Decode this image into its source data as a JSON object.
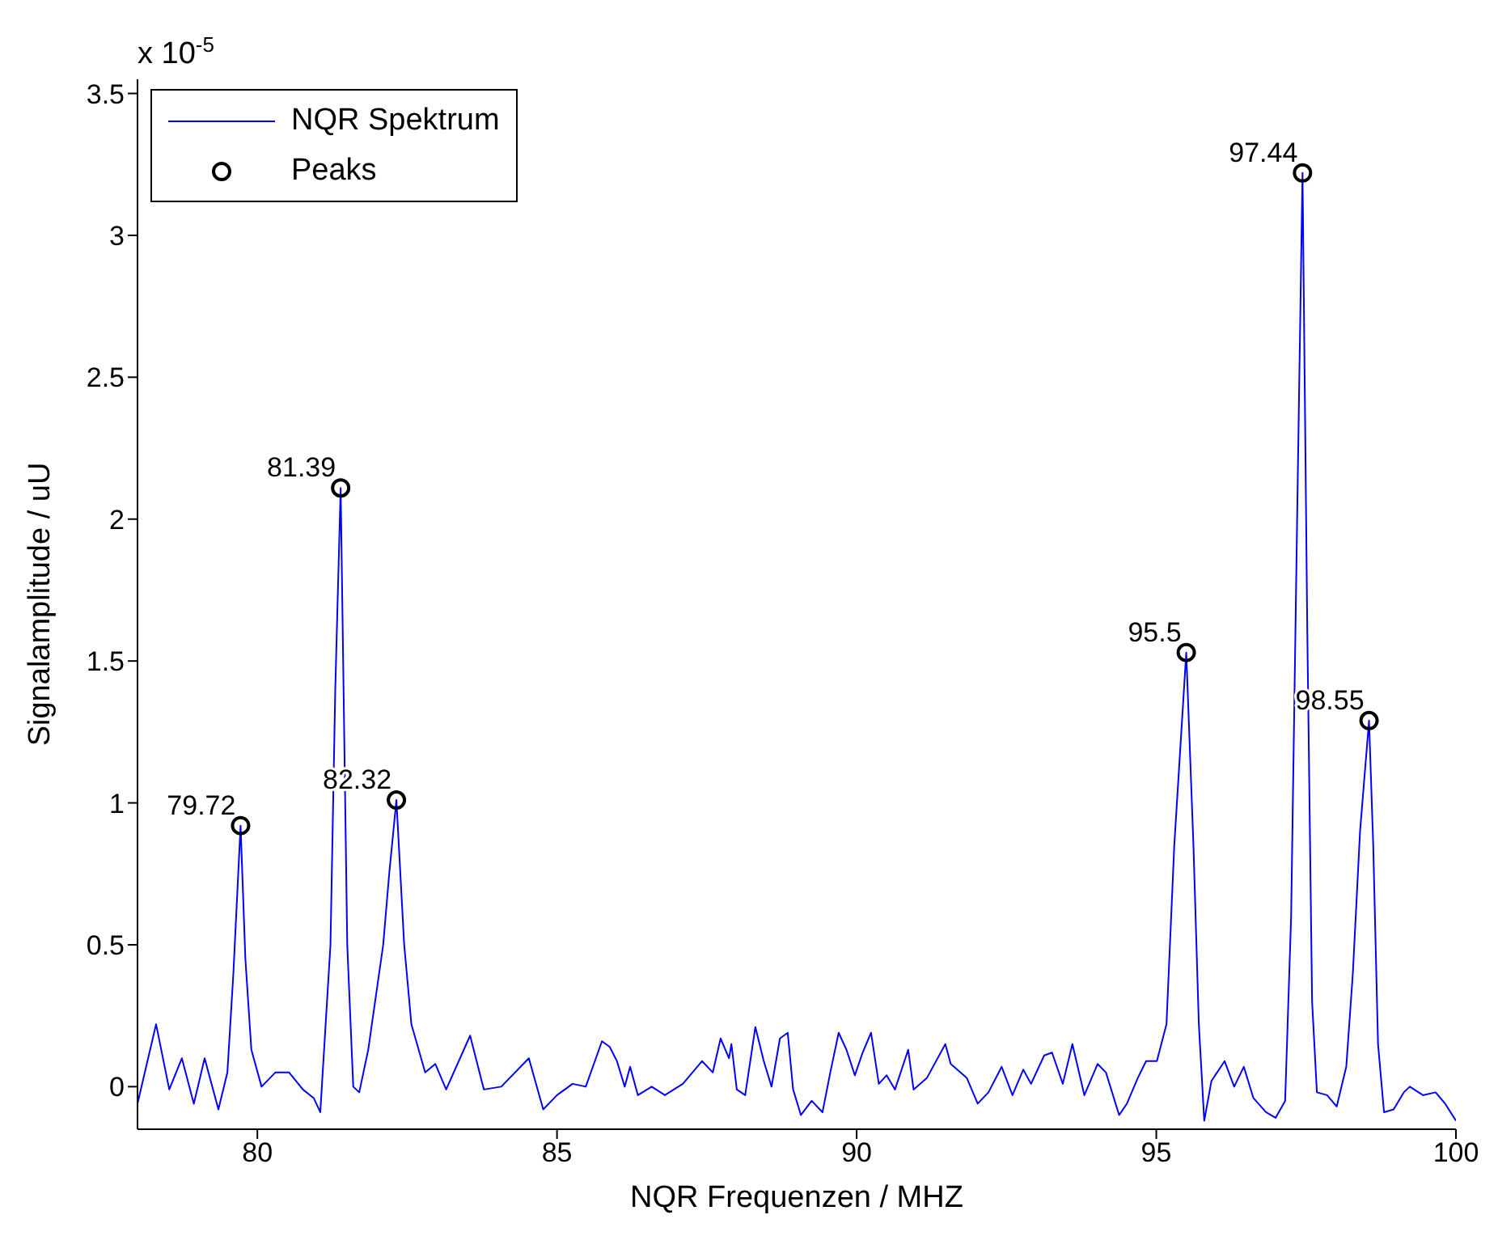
{
  "chart_data": {
    "type": "line",
    "xlabel": "NQR Frequenzen / MHZ",
    "ylabel": "Signalamplitude / uU",
    "xlim": [
      78,
      100
    ],
    "xticks": [
      80,
      85,
      90,
      95,
      100
    ],
    "ylim": [
      -0.15,
      3.55
    ],
    "yticks": [
      0,
      0.5,
      1,
      1.5,
      2,
      2.5,
      3,
      3.5
    ],
    "grid": false,
    "legend": "top left",
    "series": [
      {
        "name": "NQR Spektrum",
        "color": "#0000ff",
        "marker": "none",
        "line_style": "solid",
        "x": [
          78.0,
          78.31,
          78.53,
          78.74,
          78.94,
          79.12,
          79.35,
          79.5,
          79.6,
          79.72,
          79.8,
          79.9,
          80.07,
          80.3,
          80.53,
          80.76,
          80.94,
          81.05,
          81.22,
          81.3,
          81.39,
          81.5,
          81.6,
          81.7,
          81.85,
          82.1,
          82.2,
          82.32,
          82.45,
          82.57,
          82.8,
          82.97,
          83.15,
          83.55,
          83.78,
          84.07,
          84.53,
          84.77,
          85.0,
          85.26,
          85.48,
          85.75,
          85.88,
          86.0,
          86.13,
          86.22,
          86.35,
          86.58,
          86.8,
          87.1,
          87.42,
          87.6,
          87.73,
          87.87,
          87.91,
          88.0,
          88.14,
          88.31,
          88.45,
          88.58,
          88.72,
          88.85,
          88.94,
          89.07,
          89.25,
          89.43,
          89.56,
          89.7,
          89.83,
          89.97,
          90.1,
          90.24,
          90.37,
          90.5,
          90.64,
          90.86,
          90.95,
          91.17,
          91.48,
          91.57,
          91.84,
          92.02,
          92.2,
          92.42,
          92.6,
          92.78,
          92.91,
          93.13,
          93.26,
          93.44,
          93.6,
          93.8,
          94.02,
          94.16,
          94.38,
          94.51,
          94.69,
          94.83,
          95.01,
          95.17,
          95.3,
          95.5,
          95.62,
          95.71,
          95.8,
          95.92,
          96.14,
          96.3,
          96.46,
          96.62,
          96.83,
          96.99,
          97.15,
          97.25,
          97.35,
          97.44,
          97.52,
          97.6,
          97.68,
          97.85,
          98.01,
          98.17,
          98.28,
          98.4,
          98.55,
          98.62,
          98.7,
          98.8,
          98.96,
          99.13,
          99.23,
          99.45,
          99.66,
          99.82,
          100.0
        ],
        "values": [
          -0.06,
          0.22,
          -0.01,
          0.1,
          -0.06,
          0.1,
          -0.08,
          0.05,
          0.4,
          0.92,
          0.45,
          0.13,
          0.0,
          0.05,
          0.05,
          -0.01,
          -0.04,
          -0.09,
          0.5,
          1.4,
          2.11,
          0.5,
          0.0,
          -0.02,
          0.13,
          0.5,
          0.75,
          1.01,
          0.5,
          0.22,
          0.05,
          0.08,
          -0.01,
          0.18,
          -0.01,
          0.0,
          0.1,
          -0.08,
          -0.03,
          0.01,
          0.0,
          0.16,
          0.14,
          0.09,
          0.0,
          0.07,
          -0.03,
          0.0,
          -0.03,
          0.01,
          0.09,
          0.05,
          0.17,
          0.1,
          0.15,
          -0.01,
          -0.03,
          0.21,
          0.09,
          0.0,
          0.17,
          0.19,
          -0.01,
          -0.1,
          -0.05,
          -0.09,
          0.05,
          0.19,
          0.13,
          0.04,
          0.12,
          0.19,
          0.01,
          0.04,
          -0.01,
          0.13,
          -0.01,
          0.03,
          0.15,
          0.08,
          0.03,
          -0.06,
          -0.02,
          0.07,
          -0.03,
          0.06,
          0.01,
          0.11,
          0.12,
          0.01,
          0.15,
          -0.03,
          0.08,
          0.05,
          -0.1,
          -0.06,
          0.03,
          0.09,
          0.09,
          0.22,
          0.85,
          1.53,
          0.85,
          0.22,
          -0.12,
          0.02,
          0.09,
          0.0,
          0.07,
          -0.04,
          -0.09,
          -0.11,
          -0.05,
          0.6,
          2.0,
          3.22,
          1.6,
          0.3,
          -0.02,
          -0.03,
          -0.07,
          0.07,
          0.4,
          0.9,
          1.29,
          0.85,
          0.15,
          -0.09,
          -0.08,
          -0.02,
          0.0,
          -0.03,
          -0.02,
          -0.06,
          -0.12
        ]
      },
      {
        "name": "Peaks",
        "type": "scatter",
        "color": "#000000",
        "marker": "circle",
        "x": [
          79.72,
          81.39,
          82.32,
          95.5,
          97.44,
          98.55
        ],
        "values": [
          0.92,
          2.11,
          1.01,
          1.53,
          3.22,
          1.29
        ]
      }
    ],
    "annotations": [
      "x 10$^{-5}$",
      {
        "text": "79.72",
        "x": 79.72,
        "y": 0.92
      },
      {
        "text": "81.39",
        "x": 81.39,
        "y": 2.11
      },
      {
        "text": "82.32",
        "x": 82.32,
        "y": 1.01
      },
      {
        "text": "95.5",
        "x": 95.5,
        "y": 1.53
      },
      {
        "text": "97.44",
        "x": 97.44,
        "y": 3.22
      },
      {
        "text": "98.55",
        "x": 98.55,
        "y": 1.29
      }
    ]
  }
}
